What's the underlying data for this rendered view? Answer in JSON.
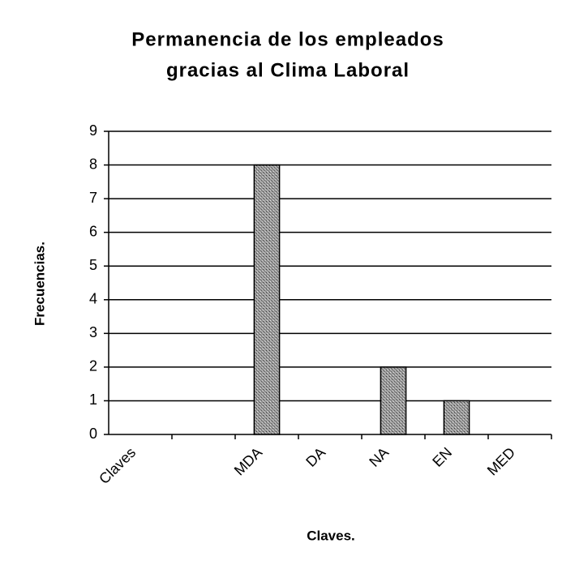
{
  "chart_data": {
    "type": "bar",
    "title": [
      "Permanencia de los empleados",
      "gracias al Clima Laboral"
    ],
    "xlabel": "Claves.",
    "ylabel": "Frecuencias.",
    "categories": [
      "Claves",
      null,
      "MDA",
      "DA",
      "NA",
      "EN",
      "MED"
    ],
    "values": [
      0,
      0,
      8,
      0,
      2,
      1,
      0
    ],
    "color": "#8a8a8a",
    "ylim": [
      0,
      9
    ],
    "yticks": [
      0,
      1,
      2,
      3,
      4,
      5,
      6,
      7,
      8,
      9
    ],
    "grid": true
  }
}
